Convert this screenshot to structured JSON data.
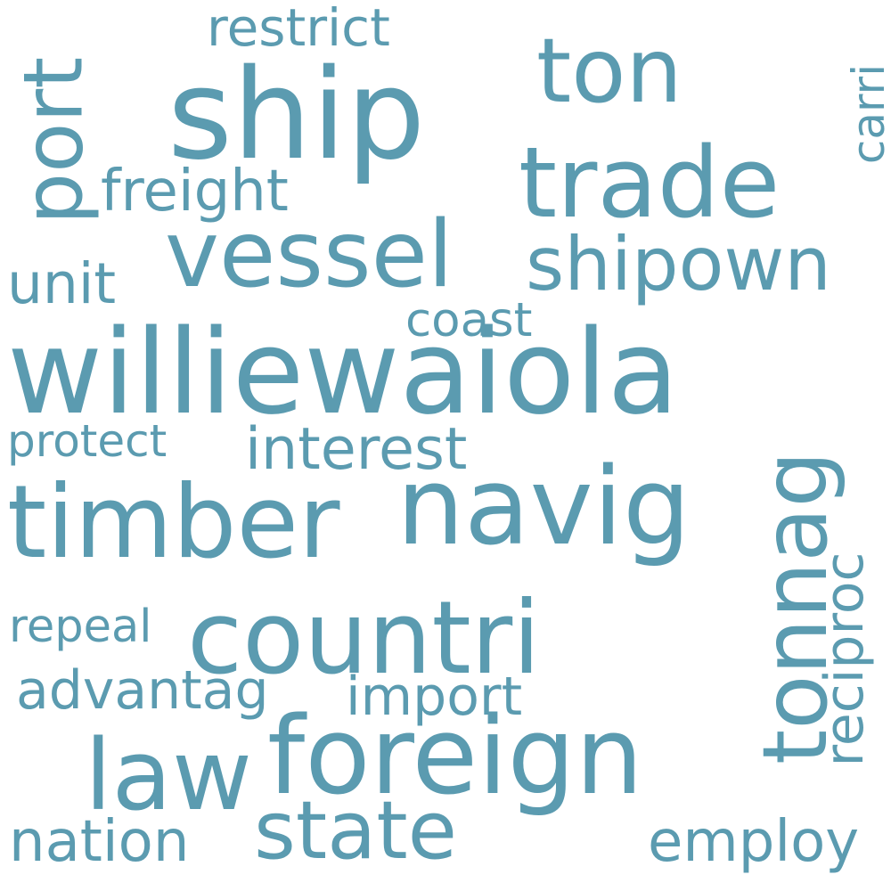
{
  "cloud": {
    "color": "#5b9bb0",
    "words": {
      "williewaiola": "williewaiola",
      "ship": "ship",
      "navig": "navig",
      "foreign": "foreign",
      "timber": "timber",
      "countri": "countri",
      "vessel": "vessel",
      "trade": "trade",
      "tonnag": "tonnag",
      "law": "law",
      "ton": "ton",
      "state": "state",
      "shipown": "shipown",
      "port": "port",
      "interest": "interest",
      "reciproc": "reciproc",
      "employ": "employ",
      "nation": "nation",
      "advantag": "advantag",
      "import": "import",
      "freight": "freight",
      "coast": "coast",
      "unit": "unit",
      "restrict": "restrict",
      "protect": "protect",
      "repeal": "repeal",
      "carri": "carri"
    }
  }
}
